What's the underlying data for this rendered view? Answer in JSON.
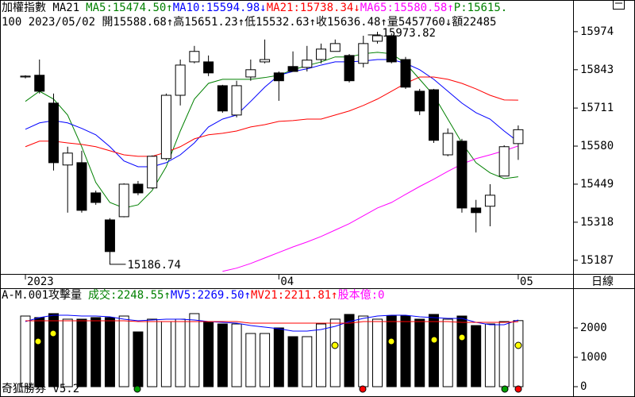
{
  "chart_data": [
    {
      "type": "candlestick",
      "title": "加權指數 MA21",
      "header": [
        {
          "text": "MA5:15474.50↑",
          "color": "#008000"
        },
        {
          "text": "MA10:15594.98↓",
          "color": "#0000ff"
        },
        {
          "text": "MA21:15738.34↓",
          "color": "#ff0000"
        },
        {
          "text": "MA65:15580.58↑",
          "color": "#ff00ff"
        },
        {
          "text": "P:15615.",
          "color": "#008000"
        }
      ],
      "subtitle": "100 2023/05/02 開15588.68↑高15651.23↑低15532.63↑收15636.48↑量5457760↓額22485",
      "categories": [
        "2023",
        null,
        null,
        null,
        null,
        null,
        null,
        null,
        null,
        null,
        null,
        null,
        null,
        null,
        null,
        null,
        null,
        null,
        "04",
        null,
        null,
        null,
        null,
        null,
        null,
        null,
        null,
        null,
        null,
        null,
        null,
        null,
        null,
        null,
        null,
        "05"
      ],
      "open": [
        15818,
        15824,
        15728,
        15515,
        15523,
        15419,
        15326,
        15337,
        15449,
        15436,
        15537,
        15755,
        15870,
        15870,
        15788,
        15687,
        15818,
        15870,
        15832,
        15854,
        15851,
        15878,
        15906,
        15892,
        15865,
        15941,
        15960,
        15878,
        15769,
        15774,
        15550,
        15597,
        15367,
        15373,
        15477,
        15588.68
      ],
      "high": [
        15824,
        15878,
        15761,
        15578,
        15564,
        15427,
        15332,
        15452,
        15460,
        15548,
        15761,
        15878,
        15925,
        15892,
        15791,
        15805,
        15878,
        15947,
        15837,
        15906,
        15925,
        15933,
        15947,
        15897,
        15960,
        15973.82,
        15968,
        15887,
        15777,
        15777,
        15641,
        15605,
        15395,
        15449,
        15583,
        15651.23
      ],
      "low": [
        15813,
        15761,
        15496,
        15351,
        15351,
        15378,
        15186.74,
        15335,
        15411,
        15433,
        15531,
        15720,
        15865,
        15821,
        15695,
        15679,
        15805,
        15865,
        15736,
        15837,
        15837,
        15865,
        15906,
        15799,
        15851,
        15933,
        15865,
        15777,
        15687,
        15591,
        15545,
        15351,
        15283,
        15304,
        15477,
        15532.63
      ],
      "close": [
        15821,
        15769,
        15523,
        15556,
        15359,
        15386,
        15217,
        15449,
        15419,
        15545,
        15755,
        15859,
        15906,
        15832,
        15701,
        15788,
        15843,
        15878,
        15805,
        15837,
        15876,
        15914,
        15933,
        15805,
        15933,
        15960,
        15870,
        15783,
        15701,
        15600,
        15624,
        15367,
        15351,
        15411,
        15578,
        15636.48
      ],
      "up_color": "#ffffff",
      "down_color": "#000000",
      "series": [
        {
          "color": "#008000",
          "values": [
            15734,
            15769,
            15742,
            15687,
            15578,
            15455,
            15386,
            15367,
            15378,
            15427,
            15509,
            15632,
            15742,
            15796,
            15810,
            15810,
            15810,
            15816,
            15824,
            15843,
            15857,
            15870,
            15887,
            15887,
            15898,
            15903,
            15898,
            15865,
            15810,
            15755,
            15673,
            15591,
            15523,
            15488,
            15468,
            15474.5
          ]
        },
        {
          "color": "#0000ff",
          "values": [
            15638,
            15660,
            15668,
            15660,
            15641,
            15619,
            15578,
            15529,
            15509,
            15509,
            15523,
            15550,
            15591,
            15646,
            15673,
            15687,
            15734,
            15783,
            15824,
            15837,
            15846,
            15859,
            15870,
            15870,
            15873,
            15878,
            15878,
            15865,
            15843,
            15810,
            15769,
            15728,
            15695,
            15673,
            15632,
            15594.98
          ]
        },
        {
          "color": "#ff0000",
          "values": [
            15578,
            15597,
            15597,
            15591,
            15586,
            15578,
            15564,
            15550,
            15545,
            15545,
            15559,
            15578,
            15605,
            15619,
            15624,
            15632,
            15646,
            15654,
            15665,
            15668,
            15673,
            15673,
            15687,
            15701,
            15720,
            15742,
            15769,
            15796,
            15818,
            15818,
            15810,
            15796,
            15777,
            15755,
            15739,
            15738.34
          ]
        },
        {
          "color": "#ff00ff",
          "values": [
            null,
            null,
            null,
            null,
            null,
            null,
            null,
            null,
            null,
            null,
            null,
            null,
            null,
            null,
            15149,
            15160,
            15176,
            15195,
            15214,
            15233,
            15250,
            15269,
            15291,
            15313,
            15340,
            15367,
            15386,
            15414,
            15441,
            15466,
            15493,
            15518,
            15537,
            15550,
            15564,
            15580.58
          ]
        }
      ],
      "max_label": "15973.82",
      "min_label": "15186.74",
      "ylim": [
        15140,
        16042
      ],
      "yticks": [
        15187,
        15318,
        15449,
        15580,
        15711,
        15843,
        15974
      ]
    },
    {
      "type": "bar",
      "title": "A-M.001攻擊量",
      "header": [
        {
          "text": "成交:2248.55↑",
          "color": "#008000"
        },
        {
          "text": "MV5:2269.50↑",
          "color": "#0000ff"
        },
        {
          "text": "MV21:2211.81↑",
          "color": "#ff0000"
        },
        {
          "text": "股本億:0",
          "color": "#ff00ff"
        }
      ],
      "values": [
        2405,
        2352,
        2487,
        2298,
        2298,
        2352,
        2352,
        2405,
        1865,
        2298,
        2216,
        2298,
        2487,
        2216,
        2135,
        2135,
        1811,
        1811,
        2000,
        1703,
        1703,
        2135,
        2298,
        2460,
        2405,
        2298,
        2405,
        2405,
        2298,
        2460,
        2298,
        2405,
        2081,
        2135,
        2216,
        2248.55
      ],
      "series": [
        {
          "color": "#0000ff",
          "values": [
            2216,
            2352,
            2433,
            2433,
            2405,
            2405,
            2379,
            2298,
            2243,
            2271,
            2298,
            2298,
            2271,
            2216,
            2189,
            2162,
            2081,
            2027,
            1973,
            1892,
            1892,
            1946,
            2054,
            2216,
            2325,
            2405,
            2433,
            2433,
            2379,
            2352,
            2325,
            2325,
            2189,
            2108,
            2108,
            2269.5
          ]
        },
        {
          "color": "#ff0000",
          "values": [
            2243,
            2243,
            2243,
            2243,
            2243,
            2243,
            2243,
            2243,
            2216,
            2216,
            2216,
            2216,
            2216,
            2216,
            2216,
            2216,
            2162,
            2162,
            2162,
            2162,
            2162,
            2162,
            2162,
            2162,
            2216,
            2216,
            2216,
            2216,
            2216,
            2216,
            2216,
            2189,
            2189,
            2189,
            2189,
            2211.81
          ]
        }
      ],
      "ylim": [
        -270,
        2892
      ],
      "yticks": [
        0,
        1000,
        2000
      ]
    }
  ],
  "period_label": "日線",
  "footer": "奇狐勝券 v5.2"
}
